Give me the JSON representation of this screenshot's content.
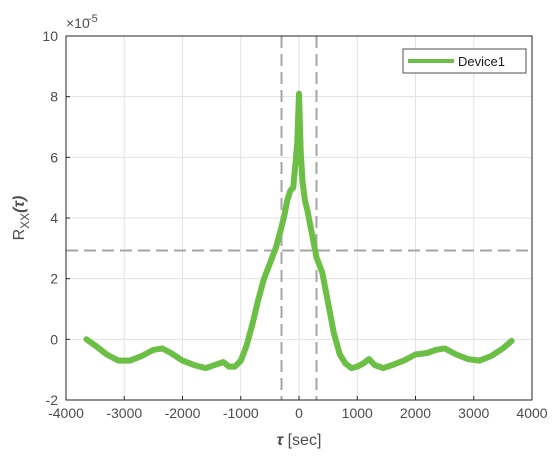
{
  "chart_data": {
    "type": "line",
    "xlabel": "τ [sec]",
    "ylabel": "RXX(τ)",
    "ylabel_main": "R",
    "ylabel_sub": "XX",
    "ylabel_arg": "(τ)",
    "xlabel_symbol": "τ",
    "xlabel_unit": " [sec]",
    "exponent_base": "×10",
    "exponent_power": "-5",
    "xlim": [
      -4000,
      4000
    ],
    "ylim": [
      -2,
      10
    ],
    "xticks": [
      -4000,
      -3000,
      -2000,
      -1000,
      0,
      1000,
      2000,
      3000,
      4000
    ],
    "yticks": [
      -2,
      0,
      2,
      4,
      6,
      8,
      10
    ],
    "grid": true,
    "legend_position": "top-right",
    "series": [
      {
        "name": "Device1",
        "color": "#6cbf45",
        "x": [
          -3650,
          -3500,
          -3300,
          -3100,
          -2900,
          -2700,
          -2500,
          -2350,
          -2200,
          -2000,
          -1800,
          -1600,
          -1450,
          -1300,
          -1200,
          -1100,
          -1000,
          -900,
          -800,
          -700,
          -600,
          -500,
          -400,
          -300,
          -250,
          -200,
          -150,
          -100,
          -60,
          -30,
          0,
          30,
          60,
          100,
          150,
          200,
          250,
          300,
          400,
          500,
          600,
          700,
          800,
          900,
          1000,
          1100,
          1200,
          1300,
          1450,
          1600,
          1800,
          2000,
          2200,
          2350,
          2500,
          2700,
          2900,
          3100,
          3300,
          3500,
          3650
        ],
        "y": [
          0.0,
          -0.2,
          -0.5,
          -0.7,
          -0.7,
          -0.55,
          -0.35,
          -0.3,
          -0.45,
          -0.7,
          -0.85,
          -0.95,
          -0.85,
          -0.75,
          -0.9,
          -0.9,
          -0.7,
          -0.2,
          0.5,
          1.3,
          2.0,
          2.5,
          3.0,
          3.7,
          4.1,
          4.6,
          4.9,
          5.0,
          5.8,
          6.5,
          8.1,
          6.2,
          5.2,
          4.6,
          4.2,
          3.7,
          3.2,
          2.7,
          2.2,
          1.2,
          0.2,
          -0.5,
          -0.8,
          -0.95,
          -0.9,
          -0.8,
          -0.65,
          -0.85,
          -0.95,
          -0.85,
          -0.7,
          -0.5,
          -0.45,
          -0.35,
          -0.3,
          -0.5,
          -0.65,
          -0.7,
          -0.55,
          -0.3,
          -0.05
        ]
      }
    ],
    "reference_lines": {
      "vertical_x": [
        -300,
        300
      ],
      "horizontal_y": [
        2.93
      ]
    }
  }
}
